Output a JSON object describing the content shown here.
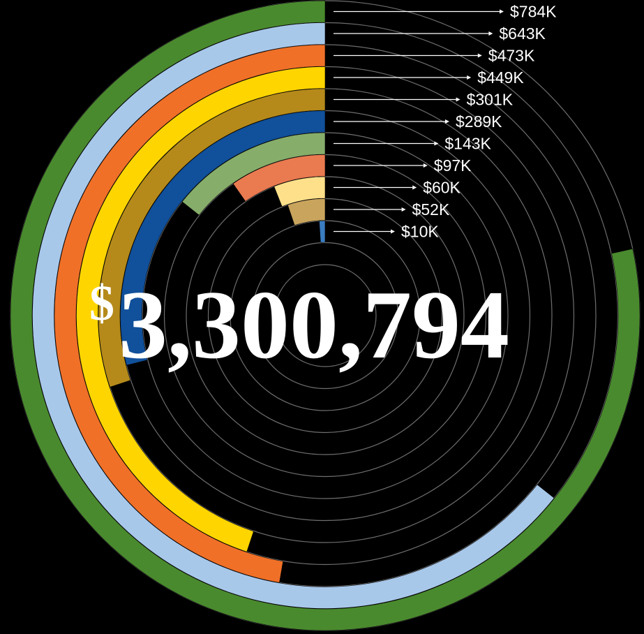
{
  "chart_data": {
    "type": "radial_bar",
    "total": {
      "prefix": "$",
      "value": "3,300,794"
    },
    "arc_scale_max": 1000,
    "grid": true,
    "series": [
      {
        "value": 784,
        "label": "$784K",
        "color": "#4a8a2e"
      },
      {
        "value": 643,
        "label": "$643K",
        "color": "#a8c8ea"
      },
      {
        "value": 473,
        "label": "$473K",
        "color": "#f07028"
      },
      {
        "value": 449,
        "label": "$449K",
        "color": "#ffd500"
      },
      {
        "value": 301,
        "label": "$301K",
        "color": "#b58a1a"
      },
      {
        "value": 289,
        "label": "$289K",
        "color": "#11509a"
      },
      {
        "value": 143,
        "label": "$143K",
        "color": "#86ad6a"
      },
      {
        "value": 97,
        "label": "$97K",
        "color": "#ea7a50"
      },
      {
        "value": 60,
        "label": "$60K",
        "color": "#ffe08a"
      },
      {
        "value": 52,
        "label": "$52K",
        "color": "#c9a45c"
      },
      {
        "value": 10,
        "label": "$10K",
        "color": "#3a7cc0"
      }
    ]
  }
}
